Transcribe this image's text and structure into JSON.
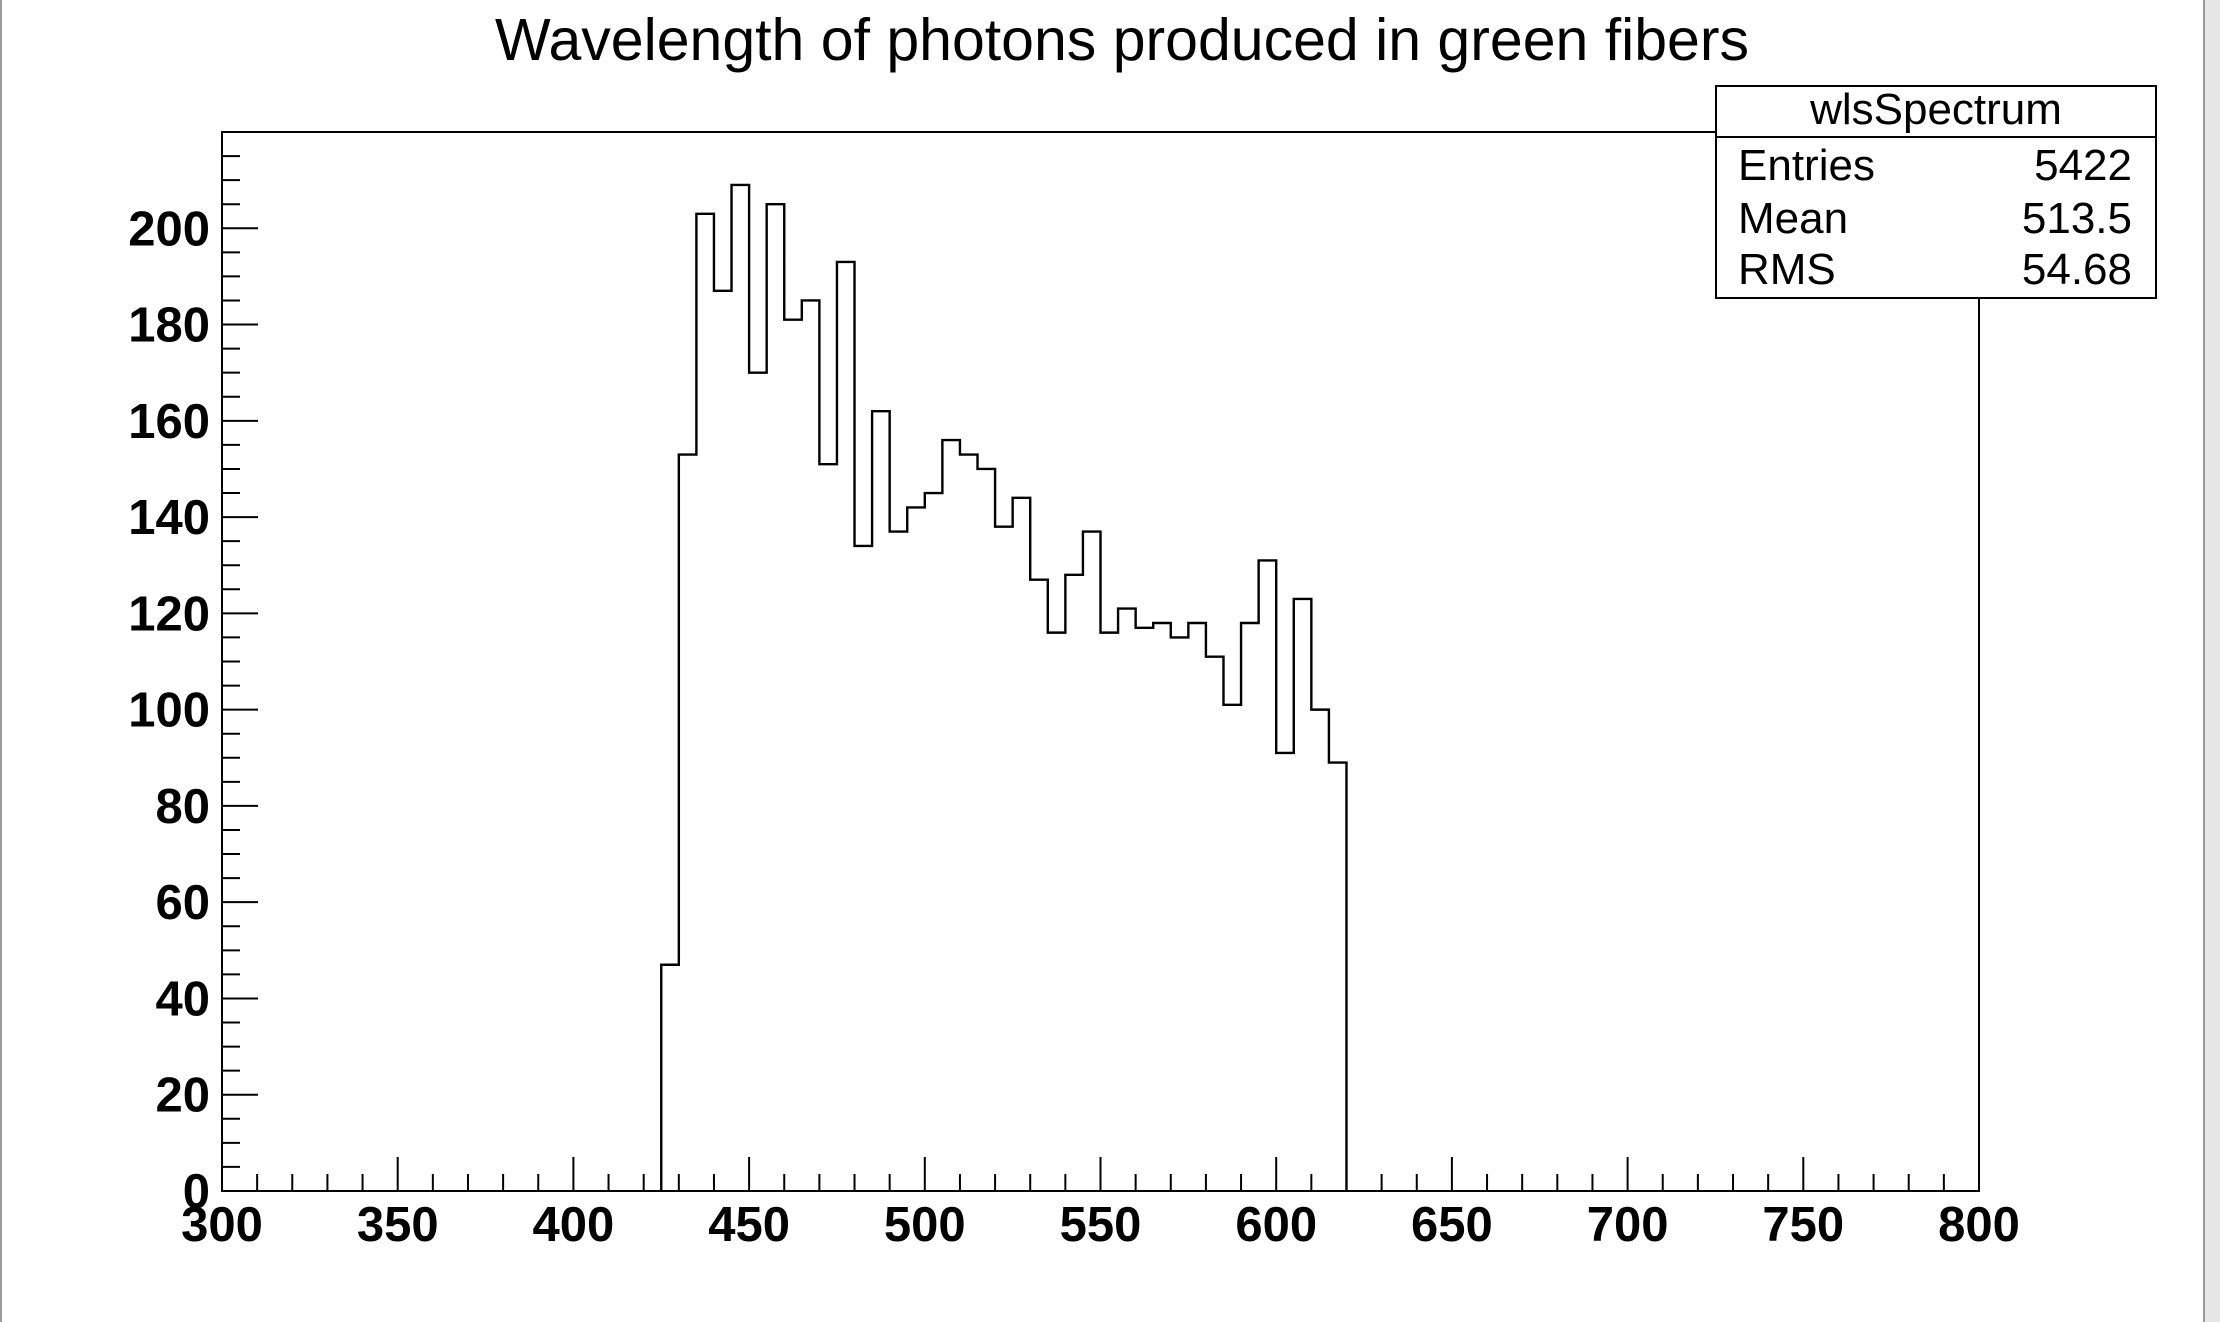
{
  "chart_data": {
    "type": "bar",
    "title": "Wavelength of photons produced in green fibers",
    "xlabel": "",
    "ylabel": "",
    "xlim": [
      300,
      800
    ],
    "ylim": [
      0,
      220
    ],
    "x_ticks": [
      300,
      350,
      400,
      450,
      500,
      550,
      600,
      650,
      700,
      750,
      800
    ],
    "y_ticks": [
      0,
      20,
      40,
      60,
      80,
      100,
      120,
      140,
      160,
      180,
      200
    ],
    "grid": false,
    "bin_width": 5,
    "bin_low_edges": [
      425,
      430,
      435,
      440,
      445,
      450,
      455,
      460,
      465,
      470,
      475,
      480,
      485,
      490,
      495,
      500,
      505,
      510,
      515,
      520,
      525,
      530,
      535,
      540,
      545,
      550,
      555,
      560,
      565,
      570,
      575,
      580,
      585,
      590,
      595,
      600,
      605,
      610,
      615
    ],
    "values": [
      47,
      153,
      203,
      187,
      209,
      170,
      205,
      181,
      185,
      151,
      193,
      134,
      162,
      137,
      142,
      145,
      156,
      153,
      150,
      138,
      144,
      127,
      116,
      128,
      137,
      116,
      121,
      117,
      118,
      115,
      118,
      111,
      101,
      118,
      131,
      91,
      123,
      100,
      89
    ],
    "stats_box": {
      "name": "wlsSpectrum",
      "placement": "top-right",
      "rows": [
        {
          "label": "Entries",
          "value": "5422"
        },
        {
          "label": "Mean",
          "value": "513.5"
        },
        {
          "label": "RMS",
          "value": "54.68"
        }
      ]
    }
  },
  "colors": {
    "background": "#ffffff",
    "line": "#000000"
  }
}
